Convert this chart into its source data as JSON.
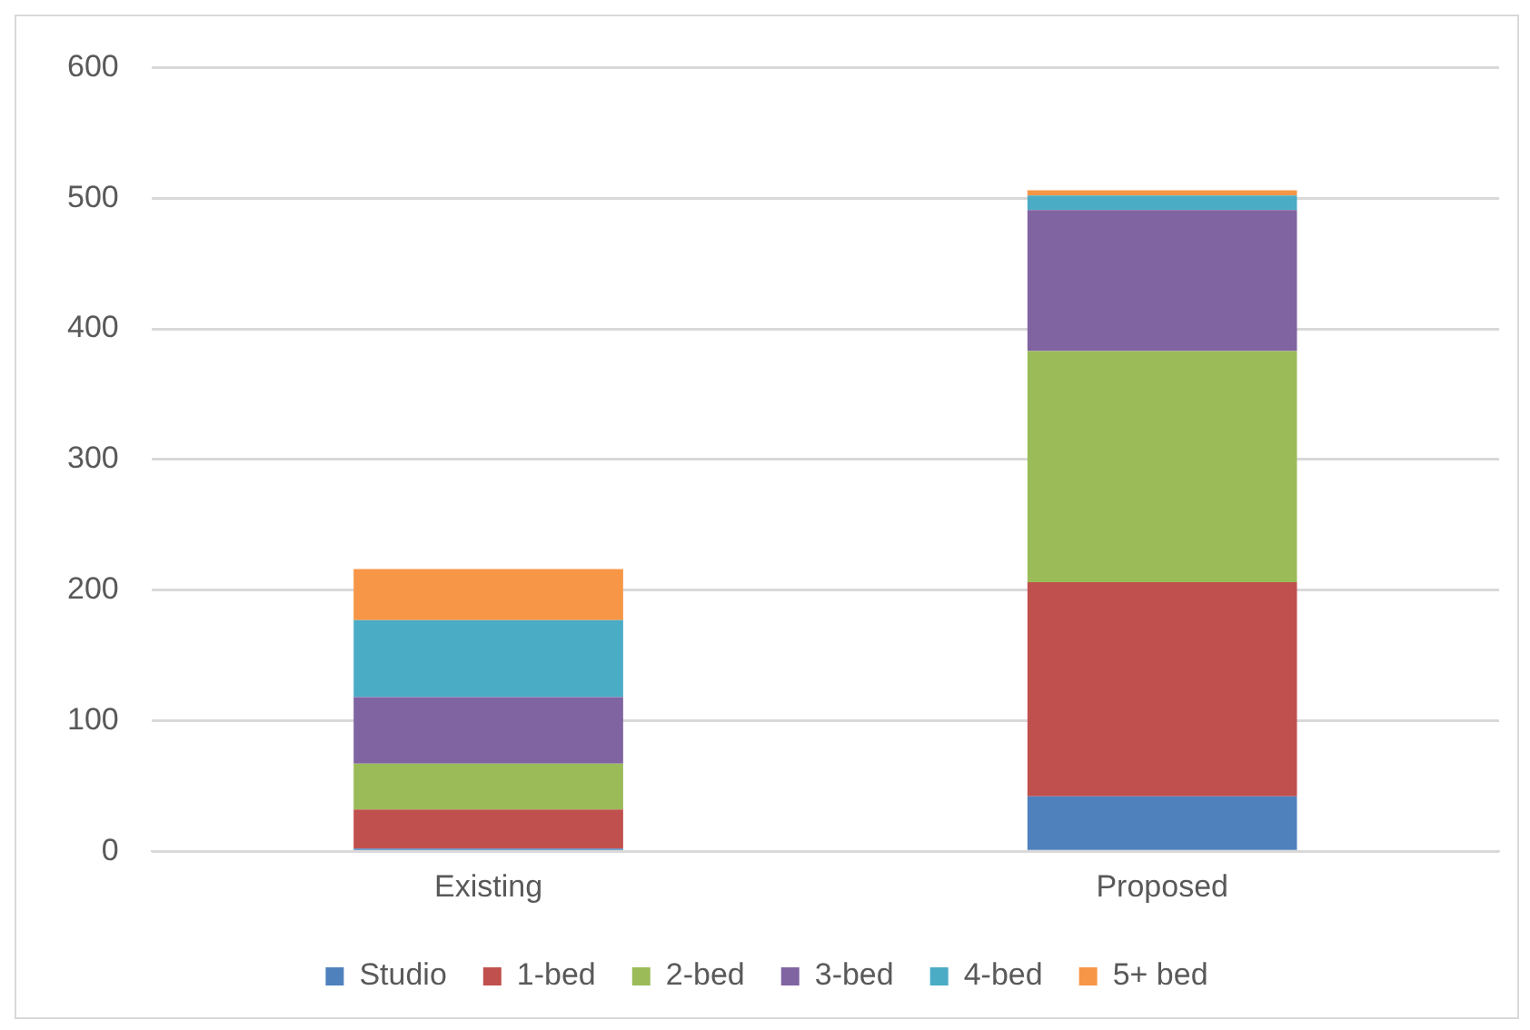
{
  "chart_data": {
    "type": "bar",
    "stacked": true,
    "categories": [
      "Existing",
      "Proposed"
    ],
    "series": [
      {
        "name": "Studio",
        "color": "#4f81bd",
        "values": [
          2,
          42
        ]
      },
      {
        "name": "1-bed",
        "color": "#c0504d",
        "values": [
          30,
          164
        ]
      },
      {
        "name": "2-bed",
        "color": "#9bbb59",
        "values": [
          35,
          177
        ]
      },
      {
        "name": "3-bed",
        "color": "#8064a2",
        "values": [
          51,
          108
        ]
      },
      {
        "name": "4-bed",
        "color": "#4bacc6",
        "values": [
          59,
          11
        ]
      },
      {
        "name": "5+ bed",
        "color": "#f79646",
        "values": [
          39,
          4
        ]
      }
    ],
    "ylim": [
      0,
      600
    ],
    "yticks": [
      0,
      100,
      200,
      300,
      400,
      500,
      600
    ],
    "grid": "y",
    "legend": "bottom"
  }
}
